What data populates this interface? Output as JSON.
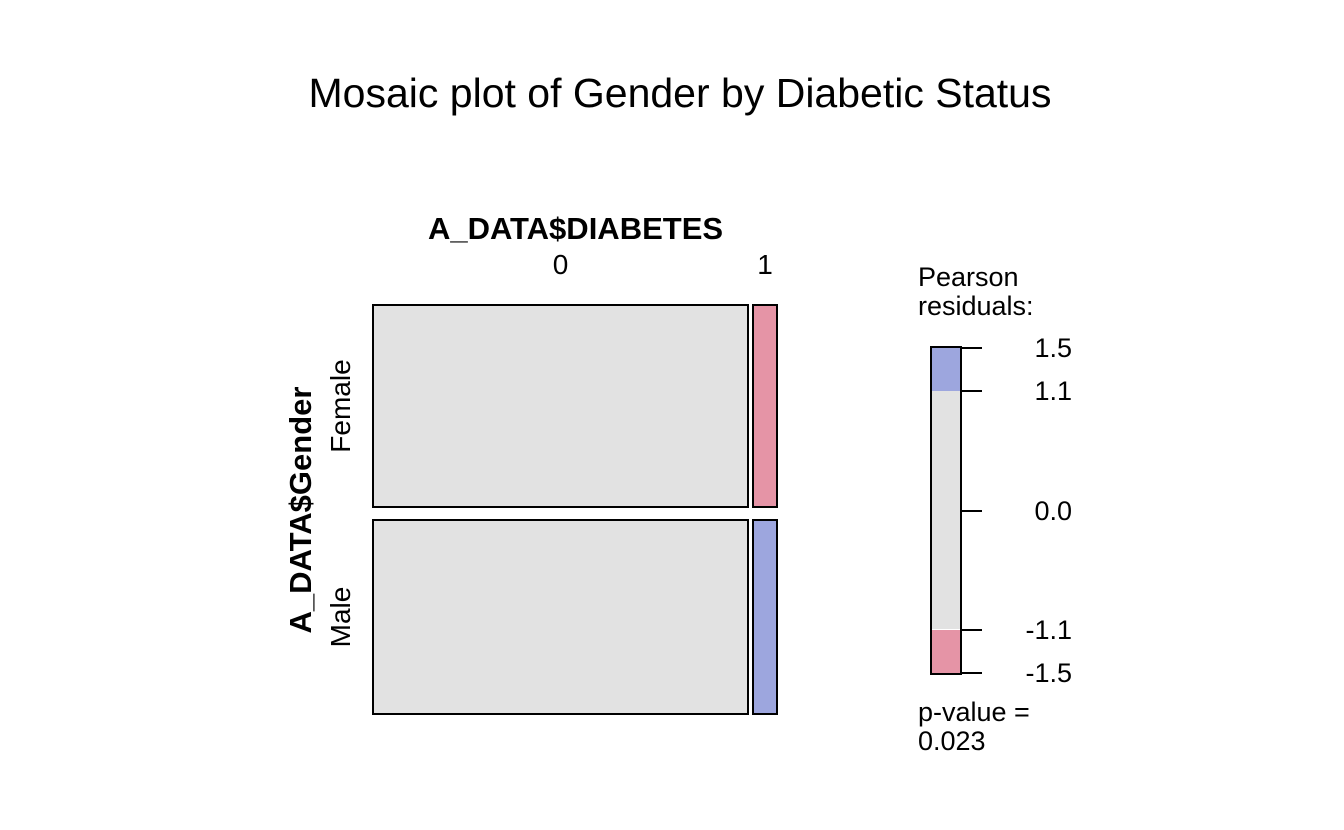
{
  "title": "Mosaic plot of Gender by Diabetic Status",
  "axes": {
    "x": {
      "title": "A_DATA$DIABETES",
      "categories": [
        "0",
        "1"
      ]
    },
    "y": {
      "title": "A_DATA$Gender",
      "categories": [
        "Female",
        "Male"
      ]
    }
  },
  "legend": {
    "title": "Pearson residuals:",
    "p_value_label": "p-value =",
    "p_value": "0.023",
    "segments": [
      {
        "from": 1.5,
        "to": 1.1,
        "bin": "positive"
      },
      {
        "from": 1.1,
        "to": -1.1,
        "bin": "neutral"
      },
      {
        "from": -1.1,
        "to": -1.5,
        "bin": "negative"
      }
    ]
  },
  "colors": {
    "positive": "#9DA6DE",
    "neutral": "#E2E2E2",
    "negative": "#E594A6",
    "border": "#000000",
    "background": "#FFFFFF",
    "text": "#000000"
  },
  "chart_data": {
    "type": "mosaic",
    "title": "Mosaic plot of Gender by Diabetic Status",
    "x_variable": "A_DATA$DIABETES",
    "y_variable": "A_DATA$Gender",
    "x_categories": [
      "0",
      "1"
    ],
    "y_categories": [
      "Female",
      "Male"
    ],
    "rows": [
      {
        "label": "Female",
        "proportion": 0.51,
        "cells": [
          {
            "col": "0",
            "proportion": 0.935,
            "residual_bin": "neutral"
          },
          {
            "col": "1",
            "proportion": 0.065,
            "residual_bin": "negative"
          }
        ]
      },
      {
        "label": "Male",
        "proportion": 0.49,
        "cells": [
          {
            "col": "0",
            "proportion": 0.935,
            "residual_bin": "neutral"
          },
          {
            "col": "1",
            "proportion": 0.065,
            "residual_bin": "positive"
          }
        ]
      }
    ],
    "legend_scale": {
      "min": -1.5,
      "max": 1.5,
      "tick_values": [
        1.5,
        1.1,
        0.0,
        -1.1,
        -1.5
      ],
      "tick_labels": [
        "1.5",
        "1.1",
        "0.0",
        "-1.1",
        "-1.5"
      ]
    },
    "p_value": 0.023
  }
}
